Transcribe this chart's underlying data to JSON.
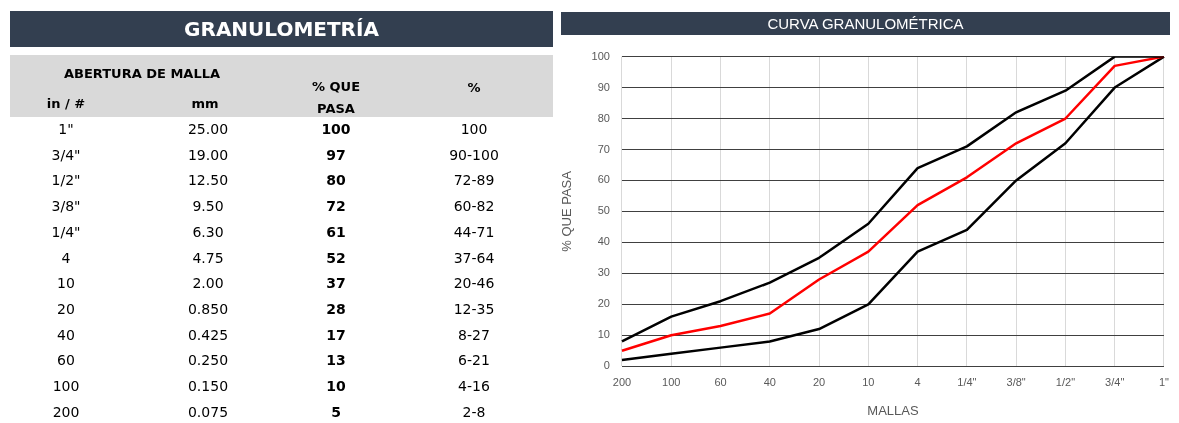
{
  "chart_data": [
    {
      "type": "other",
      "title": "GRANULOMETRÍA",
      "annotations": [
        "ABERTURA DE MALLA",
        "in / #",
        "mm",
        "% QUE PASA",
        "%",
        "1\"",
        "25.00",
        "100",
        "100",
        "3/4\"",
        "19.00",
        "97",
        "90-100",
        "1/2\"",
        "12.50",
        "80",
        "72-89",
        "3/8\"",
        "9.50",
        "72",
        "60-82",
        "1/4\"",
        "6.30",
        "61",
        "44-71",
        "4",
        "4.75",
        "52",
        "37-64",
        "10",
        "2.00",
        "37",
        "20-46",
        "20",
        "0.850",
        "28",
        "12-35",
        "40",
        "0.425",
        "17",
        "8-27",
        "60",
        "0.250",
        "13",
        "6-21",
        "100",
        "0.150",
        "10",
        "4-16",
        "200",
        "0.075",
        "5",
        "2-8"
      ]
    },
    {
      "type": "line",
      "title": "CURVA GRANULOMÉTRICA",
      "xlabel": "MALLAS",
      "ylabel": "% QUE PASA",
      "categories": [
        "200",
        "100",
        "60",
        "40",
        "20",
        "10",
        "4",
        "1/4\"",
        "3/8\"",
        "1/2\"",
        "3/4\"",
        "1\""
      ],
      "series": [
        {
          "color": "#000000",
          "values": [
            8,
            16,
            21,
            27,
            35,
            46,
            64,
            71,
            82,
            89,
            100,
            100
          ]
        },
        {
          "color": "#ff0000",
          "values": [
            5,
            10,
            13,
            17,
            28,
            37,
            52,
            61,
            72,
            80,
            97,
            100
          ]
        },
        {
          "color": "#000000",
          "values": [
            2,
            4,
            6,
            8,
            12,
            20,
            37,
            44,
            60,
            72,
            90,
            100
          ]
        }
      ],
      "ylim": [
        0,
        100
      ],
      "yticks": [
        0,
        10,
        20,
        30,
        40,
        50,
        60,
        70,
        80,
        90,
        100
      ],
      "grid": true
    }
  ]
}
